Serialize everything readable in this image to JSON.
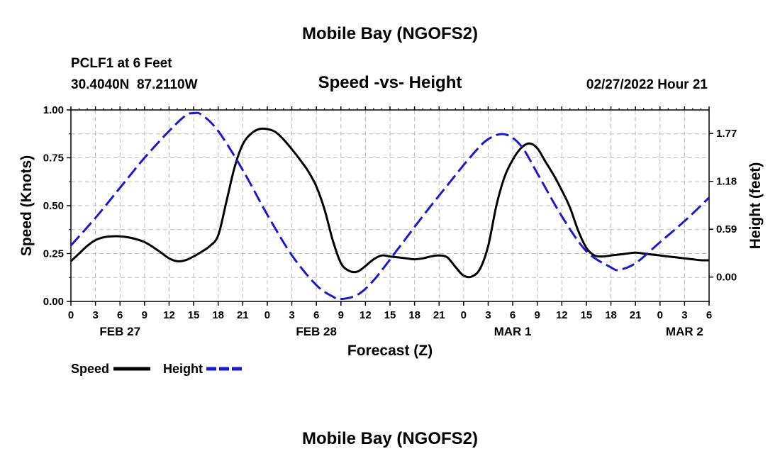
{
  "chart_data": {
    "type": "line",
    "title": "Mobile Bay (NGOFS2)",
    "footer_title": "Mobile Bay (NGOFS2)",
    "subtitle": "Speed -vs- Height",
    "station_line": "PCLF1 at 6 Feet",
    "coords_line": "30.4040N  87.2110W",
    "datetime_line": "02/27/2022 Hour 21",
    "xlabel": "Forecast (Z)",
    "ylabel_left": "Speed (Knots)",
    "ylabel_right": "Height (feet)",
    "x_range_hours": [
      0,
      78
    ],
    "ylim_left": [
      0,
      1
    ],
    "ylim_right": [
      -0.3,
      2.06
    ],
    "grid": true,
    "left_ticks": [
      "0.00",
      "0.25",
      "0.50",
      "0.75",
      "1.00"
    ],
    "left_tick_values": [
      0,
      0.25,
      0.5,
      0.75,
      1.0
    ],
    "right_ticks": [
      "0.00",
      "0.59",
      "1.18",
      "1.77"
    ],
    "right_tick_values": [
      0,
      0.59,
      1.18,
      1.77
    ],
    "x_tick_labels": [
      "0",
      "3",
      "6",
      "9",
      "12",
      "15",
      "18",
      "21",
      "0",
      "3",
      "6",
      "9",
      "12",
      "15",
      "18",
      "21",
      "0",
      "3",
      "6",
      "9",
      "12",
      "15",
      "18",
      "21",
      "0",
      "3",
      "6"
    ],
    "date_labels": [
      {
        "label": "FEB 27",
        "hour": 6
      },
      {
        "label": "FEB 28",
        "hour": 30
      },
      {
        "label": "MAR 1",
        "hour": 54
      },
      {
        "label": "MAR 2",
        "hour": 75
      }
    ],
    "series": [
      {
        "name": "Speed",
        "axis": "left",
        "color": "#000000",
        "dash": "solid",
        "points": [
          [
            0,
            0.21
          ],
          [
            1,
            0.25
          ],
          [
            2,
            0.29
          ],
          [
            3,
            0.32
          ],
          [
            4,
            0.335
          ],
          [
            5,
            0.34
          ],
          [
            6,
            0.34
          ],
          [
            7,
            0.335
          ],
          [
            8,
            0.325
          ],
          [
            9,
            0.31
          ],
          [
            10,
            0.285
          ],
          [
            11,
            0.255
          ],
          [
            12,
            0.225
          ],
          [
            13,
            0.21
          ],
          [
            14,
            0.215
          ],
          [
            15,
            0.235
          ],
          [
            16,
            0.26
          ],
          [
            17,
            0.29
          ],
          [
            18,
            0.345
          ],
          [
            19,
            0.52
          ],
          [
            20,
            0.7
          ],
          [
            21,
            0.82
          ],
          [
            22,
            0.875
          ],
          [
            23,
            0.9
          ],
          [
            24,
            0.9
          ],
          [
            25,
            0.885
          ],
          [
            26,
            0.845
          ],
          [
            27,
            0.795
          ],
          [
            28,
            0.74
          ],
          [
            29,
            0.68
          ],
          [
            30,
            0.6
          ],
          [
            31,
            0.48
          ],
          [
            32,
            0.32
          ],
          [
            33,
            0.2
          ],
          [
            34,
            0.16
          ],
          [
            35,
            0.155
          ],
          [
            36,
            0.185
          ],
          [
            37,
            0.22
          ],
          [
            38,
            0.24
          ],
          [
            39,
            0.235
          ],
          [
            40,
            0.23
          ],
          [
            41,
            0.225
          ],
          [
            42,
            0.22
          ],
          [
            43,
            0.225
          ],
          [
            44,
            0.235
          ],
          [
            45,
            0.24
          ],
          [
            46,
            0.23
          ],
          [
            47,
            0.18
          ],
          [
            48,
            0.135
          ],
          [
            49,
            0.13
          ],
          [
            50,
            0.17
          ],
          [
            51,
            0.29
          ],
          [
            52,
            0.5
          ],
          [
            53,
            0.65
          ],
          [
            54,
            0.74
          ],
          [
            55,
            0.8
          ],
          [
            56,
            0.825
          ],
          [
            57,
            0.8
          ],
          [
            58,
            0.73
          ],
          [
            59,
            0.66
          ],
          [
            60,
            0.58
          ],
          [
            61,
            0.49
          ],
          [
            62,
            0.37
          ],
          [
            63,
            0.28
          ],
          [
            64,
            0.24
          ],
          [
            65,
            0.235
          ],
          [
            66,
            0.24
          ],
          [
            67,
            0.245
          ],
          [
            68,
            0.25
          ],
          [
            69,
            0.255
          ],
          [
            70,
            0.25
          ],
          [
            71,
            0.245
          ],
          [
            72,
            0.24
          ],
          [
            73,
            0.235
          ],
          [
            74,
            0.23
          ],
          [
            75,
            0.225
          ],
          [
            76,
            0.22
          ],
          [
            77,
            0.215
          ],
          [
            78,
            0.215
          ]
        ]
      },
      {
        "name": "Height",
        "axis": "right",
        "color": "#1a1acc",
        "dash": "dashed",
        "points": [
          [
            0,
            0.39
          ],
          [
            3,
            0.73
          ],
          [
            6,
            1.1
          ],
          [
            9,
            1.47
          ],
          [
            12,
            1.8
          ],
          [
            14,
            1.99
          ],
          [
            15,
            2.02
          ],
          [
            16,
            2.0
          ],
          [
            18,
            1.8
          ],
          [
            21,
            1.32
          ],
          [
            24,
            0.77
          ],
          [
            27,
            0.27
          ],
          [
            30,
            -0.1
          ],
          [
            32,
            -0.24
          ],
          [
            33,
            -0.27
          ],
          [
            35,
            -0.22
          ],
          [
            37,
            -0.04
          ],
          [
            40,
            0.35
          ],
          [
            43,
            0.75
          ],
          [
            46,
            1.13
          ],
          [
            49,
            1.5
          ],
          [
            51,
            1.7
          ],
          [
            53,
            1.76
          ],
          [
            55,
            1.62
          ],
          [
            57,
            1.28
          ],
          [
            60,
            0.75
          ],
          [
            63,
            0.32
          ],
          [
            66,
            0.12
          ],
          [
            67,
            0.09
          ],
          [
            69,
            0.17
          ],
          [
            72,
            0.43
          ],
          [
            75,
            0.69
          ],
          [
            78,
            0.98
          ]
        ]
      }
    ],
    "legend": [
      {
        "label": "Speed",
        "color": "#000000",
        "dash": "solid"
      },
      {
        "label": "Height",
        "color": "#1a1acc",
        "dash": "dashed"
      }
    ]
  }
}
